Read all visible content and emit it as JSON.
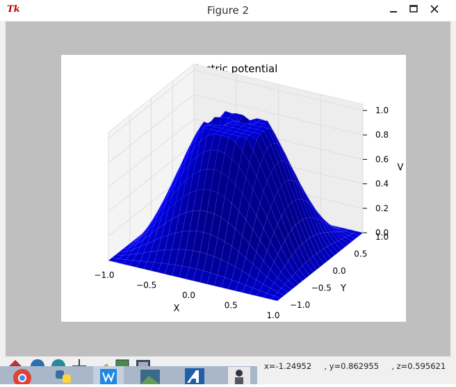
{
  "window": {
    "title": "Figure 2",
    "app_logo_text": "Tk",
    "controls": [
      "minimize-icon",
      "maximize-icon",
      "close-icon"
    ]
  },
  "figure": {
    "background": "#bfbfbf",
    "surface_color": "#0000ff"
  },
  "chart_data": {
    "type": "surface3d",
    "title": "electric potential",
    "xlabel": "X",
    "ylabel": "Y",
    "zlabel": "V",
    "xlim": [
      -1.0,
      1.0
    ],
    "ylim": [
      -1.0,
      1.0
    ],
    "zlim": [
      0.0,
      1.0
    ],
    "x_ticks": [
      "−1.0",
      "−0.5",
      "0.0",
      "0.5",
      "1.0"
    ],
    "y_ticks": [
      "−1.0",
      "−0.5",
      "0.0",
      "0.5",
      "1.0"
    ],
    "z_ticks": [
      "0.0",
      "0.2",
      "0.4",
      "0.6",
      "0.8",
      "1.0"
    ],
    "grid": true,
    "description_points": {
      "boundary_value": 0.0,
      "peak_value": 1.0
    }
  },
  "toolbar": {
    "buttons": [
      "home-icon",
      "back-icon",
      "forward-icon",
      "pan-icon",
      "zoom-icon",
      "subplots-icon",
      "save-icon"
    ],
    "status": "x=-1.24952     , y=0.862955     , z=0.595621"
  },
  "taskbar": {
    "apps": [
      "chrome-icon",
      "python-icon",
      "wps-icon",
      "photo-icon",
      "app-a-icon",
      "user-icon"
    ]
  }
}
